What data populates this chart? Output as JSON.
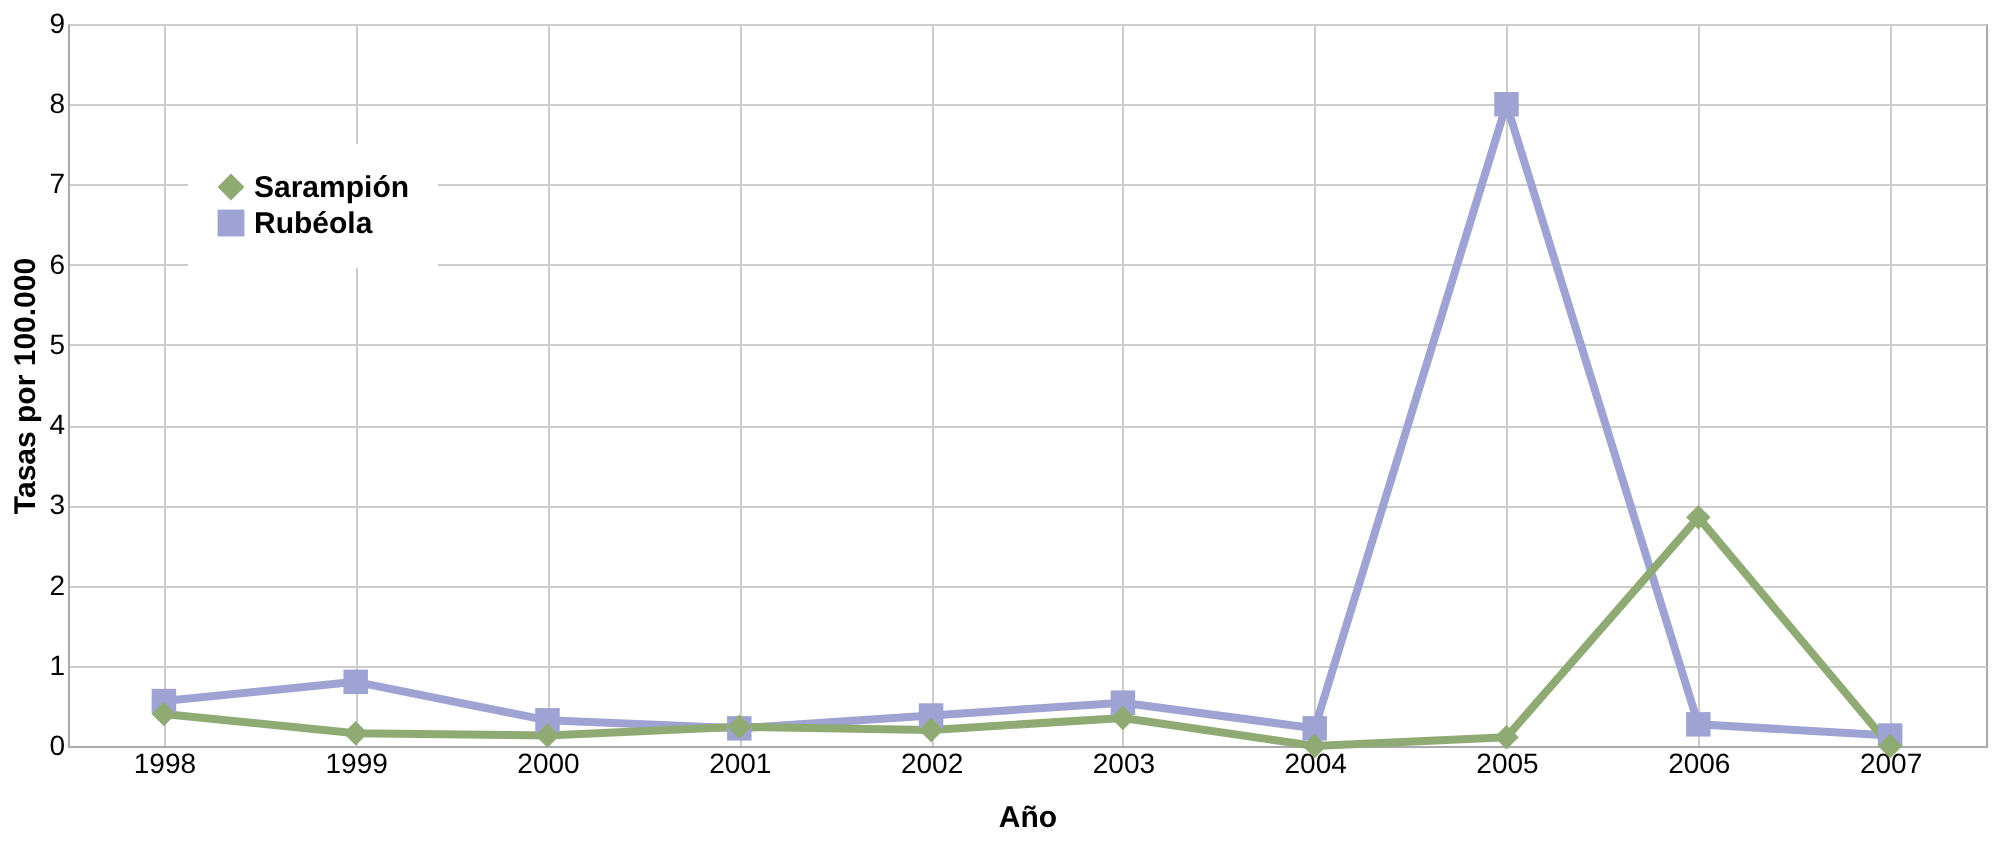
{
  "chart_data": {
    "type": "line",
    "xlabel": "Año",
    "ylabel": "Tasas por 100.000",
    "categories": [
      "1998",
      "1999",
      "2000",
      "2001",
      "2002",
      "2003",
      "2004",
      "2005",
      "2006",
      "2007"
    ],
    "series": [
      {
        "name": "Sarampión",
        "color": "#8fab73",
        "marker": "diamond",
        "values": [
          0.4,
          0.16,
          0.13,
          0.24,
          0.2,
          0.35,
          0,
          0.11,
          2.85,
          0
        ]
      },
      {
        "name": "Rubéola",
        "color": "#9ea3d3",
        "marker": "square",
        "values": [
          0.56,
          0.8,
          0.32,
          0.22,
          0.38,
          0.54,
          0.22,
          8.0,
          0.27,
          0.13
        ]
      }
    ],
    "ylim": [
      0,
      9
    ],
    "yticks": [
      0,
      1,
      2,
      3,
      4,
      5,
      6,
      7,
      8,
      9
    ],
    "grid": true,
    "legend": "top left",
    "line_style": "solid"
  }
}
